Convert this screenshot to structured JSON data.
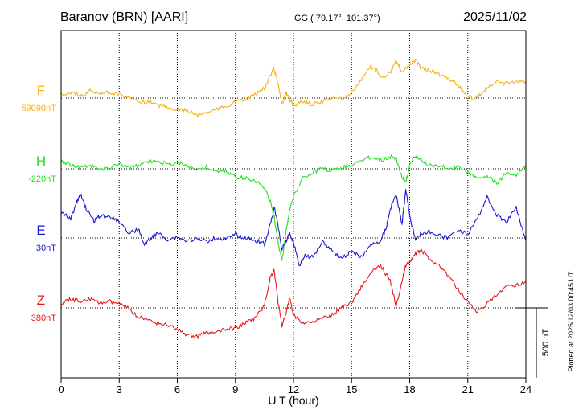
{
  "header": {
    "station": "Baranov (BRN)  [AARI]",
    "coords": "GG ( 79.17°, 101.37°)",
    "date": "2025/11/02"
  },
  "side_note": "Plotted at 2025/12/03 00:45 UT",
  "chart_data": {
    "type": "line",
    "xlabel": "U T (hour)",
    "xlim": [
      0,
      24
    ],
    "xticks": [
      0,
      3,
      6,
      9,
      12,
      15,
      18,
      21,
      24
    ],
    "scale_bar_label": "500 nT",
    "scale_bar_nT": 500,
    "grid": true,
    "series": [
      {
        "name": "F",
        "baseline_label": "59090nT",
        "color": "#f5b01a",
        "points": [
          [
            0,
            118
          ],
          [
            0.5,
            115
          ],
          [
            1,
            119
          ],
          [
            1.5,
            113
          ],
          [
            2,
            116
          ],
          [
            2.5,
            115
          ],
          [
            3,
            117
          ],
          [
            3.5,
            122
          ],
          [
            4,
            126
          ],
          [
            4.5,
            127
          ],
          [
            5,
            131
          ],
          [
            5.5,
            133
          ],
          [
            6,
            136
          ],
          [
            6.5,
            138
          ],
          [
            7,
            143
          ],
          [
            7.5,
            140
          ],
          [
            8,
            136
          ],
          [
            8.5,
            132
          ],
          [
            9,
            127
          ],
          [
            9.5,
            124
          ],
          [
            10,
            118
          ],
          [
            10.5,
            110
          ],
          [
            10.8,
            95
          ],
          [
            11.0,
            85
          ],
          [
            11.2,
            105
          ],
          [
            11.4,
            130
          ],
          [
            11.6,
            115
          ],
          [
            11.8,
            124
          ],
          [
            12,
            131
          ],
          [
            12.5,
            126
          ],
          [
            13,
            130
          ],
          [
            13.5,
            126
          ],
          [
            14,
            121
          ],
          [
            14.5,
            123
          ],
          [
            15,
            116
          ],
          [
            15.5,
            100
          ],
          [
            16,
            82
          ],
          [
            16.3,
            88
          ],
          [
            16.6,
            96
          ],
          [
            17,
            90
          ],
          [
            17.3,
            76
          ],
          [
            17.6,
            89
          ],
          [
            18,
            80
          ],
          [
            18.3,
            75
          ],
          [
            18.6,
            85
          ],
          [
            19,
            87
          ],
          [
            19.5,
            92
          ],
          [
            20,
            97
          ],
          [
            20.5,
            106
          ],
          [
            21,
            120
          ],
          [
            21.3,
            123
          ],
          [
            21.7,
            116
          ],
          [
            22,
            110
          ],
          [
            22.5,
            102
          ],
          [
            23,
            104
          ],
          [
            23.5,
            103
          ],
          [
            24,
            101
          ]
        ]
      },
      {
        "name": "H",
        "baseline_label": "-220nT",
        "color": "#22e022",
        "points": [
          [
            0,
            200
          ],
          [
            0.5,
            205
          ],
          [
            1,
            208
          ],
          [
            1.5,
            206
          ],
          [
            2,
            211
          ],
          [
            2.5,
            209
          ],
          [
            3,
            204
          ],
          [
            3.5,
            209
          ],
          [
            4,
            206
          ],
          [
            4.5,
            201
          ],
          [
            5,
            200
          ],
          [
            5.5,
            205
          ],
          [
            6,
            202
          ],
          [
            6.5,
            206
          ],
          [
            7,
            211
          ],
          [
            7.5,
            208
          ],
          [
            8,
            214
          ],
          [
            8.5,
            213
          ],
          [
            9,
            220
          ],
          [
            9.5,
            222
          ],
          [
            10,
            224
          ],
          [
            10.5,
            234
          ],
          [
            10.8,
            250
          ],
          [
            11.0,
            270
          ],
          [
            11.2,
            300
          ],
          [
            11.4,
            325
          ],
          [
            11.6,
            290
          ],
          [
            11.8,
            260
          ],
          [
            12,
            245
          ],
          [
            12.5,
            222
          ],
          [
            13,
            214
          ],
          [
            13.5,
            210
          ],
          [
            14,
            212
          ],
          [
            14.5,
            208
          ],
          [
            15,
            205
          ],
          [
            15.5,
            200
          ],
          [
            16,
            195
          ],
          [
            16.5,
            199
          ],
          [
            17,
            195
          ],
          [
            17.3,
            196
          ],
          [
            17.6,
            220
          ],
          [
            17.8,
            228
          ],
          [
            18,
            205
          ],
          [
            18.3,
            193
          ],
          [
            18.6,
            200
          ],
          [
            19,
            205
          ],
          [
            19.5,
            206
          ],
          [
            20,
            210
          ],
          [
            20.5,
            208
          ],
          [
            21,
            215
          ],
          [
            21.5,
            221
          ],
          [
            22,
            219
          ],
          [
            22.5,
            228
          ],
          [
            23,
            215
          ],
          [
            23.5,
            218
          ],
          [
            24,
            205
          ]
        ]
      },
      {
        "name": "E",
        "baseline_label": "30nT",
        "color": "#1818d0",
        "points": [
          [
            0,
            265
          ],
          [
            0.5,
            272
          ],
          [
            0.8,
            252
          ],
          [
            1,
            242
          ],
          [
            1.3,
            260
          ],
          [
            1.7,
            275
          ],
          [
            2,
            268
          ],
          [
            2.5,
            270
          ],
          [
            3,
            275
          ],
          [
            3.5,
            290
          ],
          [
            4,
            285
          ],
          [
            4.3,
            305
          ],
          [
            4.7,
            295
          ],
          [
            5,
            290
          ],
          [
            5.5,
            298
          ],
          [
            6,
            295
          ],
          [
            6.5,
            300
          ],
          [
            7,
            297
          ],
          [
            7.5,
            300
          ],
          [
            8,
            296
          ],
          [
            8.5,
            298
          ],
          [
            9,
            292
          ],
          [
            9.5,
            296
          ],
          [
            10,
            299
          ],
          [
            10.5,
            303
          ],
          [
            10.8,
            280
          ],
          [
            11.0,
            258
          ],
          [
            11.2,
            280
          ],
          [
            11.4,
            310
          ],
          [
            11.6,
            300
          ],
          [
            11.8,
            290
          ],
          [
            12,
            302
          ],
          [
            12.3,
            330
          ],
          [
            12.6,
            318
          ],
          [
            13,
            320
          ],
          [
            13.5,
            300
          ],
          [
            14,
            312
          ],
          [
            14.5,
            322
          ],
          [
            15,
            312
          ],
          [
            15.5,
            320
          ],
          [
            16,
            305
          ],
          [
            16.5,
            300
          ],
          [
            16.8,
            282
          ],
          [
            17,
            260
          ],
          [
            17.3,
            242
          ],
          [
            17.6,
            280
          ],
          [
            17.8,
            235
          ],
          [
            18,
            268
          ],
          [
            18.3,
            298
          ],
          [
            18.6,
            290
          ],
          [
            19,
            288
          ],
          [
            19.5,
            293
          ],
          [
            20,
            296
          ],
          [
            20.5,
            285
          ],
          [
            21,
            292
          ],
          [
            21.5,
            272
          ],
          [
            22,
            245
          ],
          [
            22.5,
            268
          ],
          [
            23,
            276
          ],
          [
            23.5,
            258
          ],
          [
            24,
            300
          ]
        ]
      },
      {
        "name": "Z",
        "baseline_label": "380nT",
        "color": "#e81818",
        "points": [
          [
            0,
            378
          ],
          [
            0.5,
            372
          ],
          [
            1,
            374
          ],
          [
            1.5,
            372
          ],
          [
            2,
            377
          ],
          [
            2.5,
            375
          ],
          [
            3,
            378
          ],
          [
            3.5,
            384
          ],
          [
            4,
            395
          ],
          [
            4.5,
            398
          ],
          [
            5,
            402
          ],
          [
            5.5,
            404
          ],
          [
            6,
            410
          ],
          [
            6.5,
            416
          ],
          [
            7,
            419
          ],
          [
            7.5,
            414
          ],
          [
            8,
            414
          ],
          [
            8.5,
            410
          ],
          [
            9,
            408
          ],
          [
            9.5,
            402
          ],
          [
            10,
            396
          ],
          [
            10.5,
            380
          ],
          [
            10.8,
            345
          ],
          [
            11.0,
            335
          ],
          [
            11.2,
            375
          ],
          [
            11.4,
            405
          ],
          [
            11.6,
            390
          ],
          [
            11.8,
            372
          ],
          [
            12,
            392
          ],
          [
            12.5,
            402
          ],
          [
            13,
            400
          ],
          [
            13.5,
            396
          ],
          [
            14,
            392
          ],
          [
            14.5,
            382
          ],
          [
            15,
            376
          ],
          [
            15.5,
            357
          ],
          [
            16,
            340
          ],
          [
            16.5,
            330
          ],
          [
            17,
            350
          ],
          [
            17.3,
            380
          ],
          [
            17.6,
            350
          ],
          [
            17.8,
            330
          ],
          [
            18,
            325
          ],
          [
            18.3,
            316
          ],
          [
            18.6,
            311
          ],
          [
            19,
            322
          ],
          [
            19.5,
            330
          ],
          [
            20,
            343
          ],
          [
            20.5,
            360
          ],
          [
            21,
            375
          ],
          [
            21.5,
            388
          ],
          [
            22,
            378
          ],
          [
            22.5,
            367
          ],
          [
            23,
            357
          ],
          [
            23.5,
            355
          ],
          [
            24,
            350
          ]
        ]
      }
    ]
  }
}
